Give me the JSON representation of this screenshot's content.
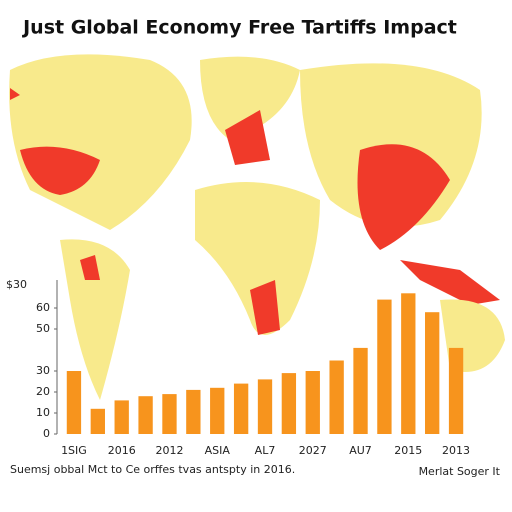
{
  "chart_data": {
    "type": "bar",
    "title": "Just Global Economy Free Tartiffs Impact",
    "y_label": "$30",
    "footnote": "Suemsj obbal Mct to Ce orffes tvas antspty in 2016.",
    "source": "Merlat Soger It",
    "categories": [
      "1SIG",
      null,
      "2016",
      null,
      "2012",
      null,
      "ASIA",
      null,
      "AL7",
      null,
      "2027",
      null,
      "AU7",
      null,
      "2015",
      null,
      "2013"
    ],
    "values": [
      30,
      12,
      16,
      18,
      19,
      21,
      22,
      24,
      26,
      29,
      30,
      35,
      41,
      64,
      67,
      58,
      41
    ],
    "color": "#f7941d",
    "ylim": [
      0,
      70
    ],
    "yticks": [
      0,
      10,
      20,
      30,
      50,
      60
    ]
  }
}
